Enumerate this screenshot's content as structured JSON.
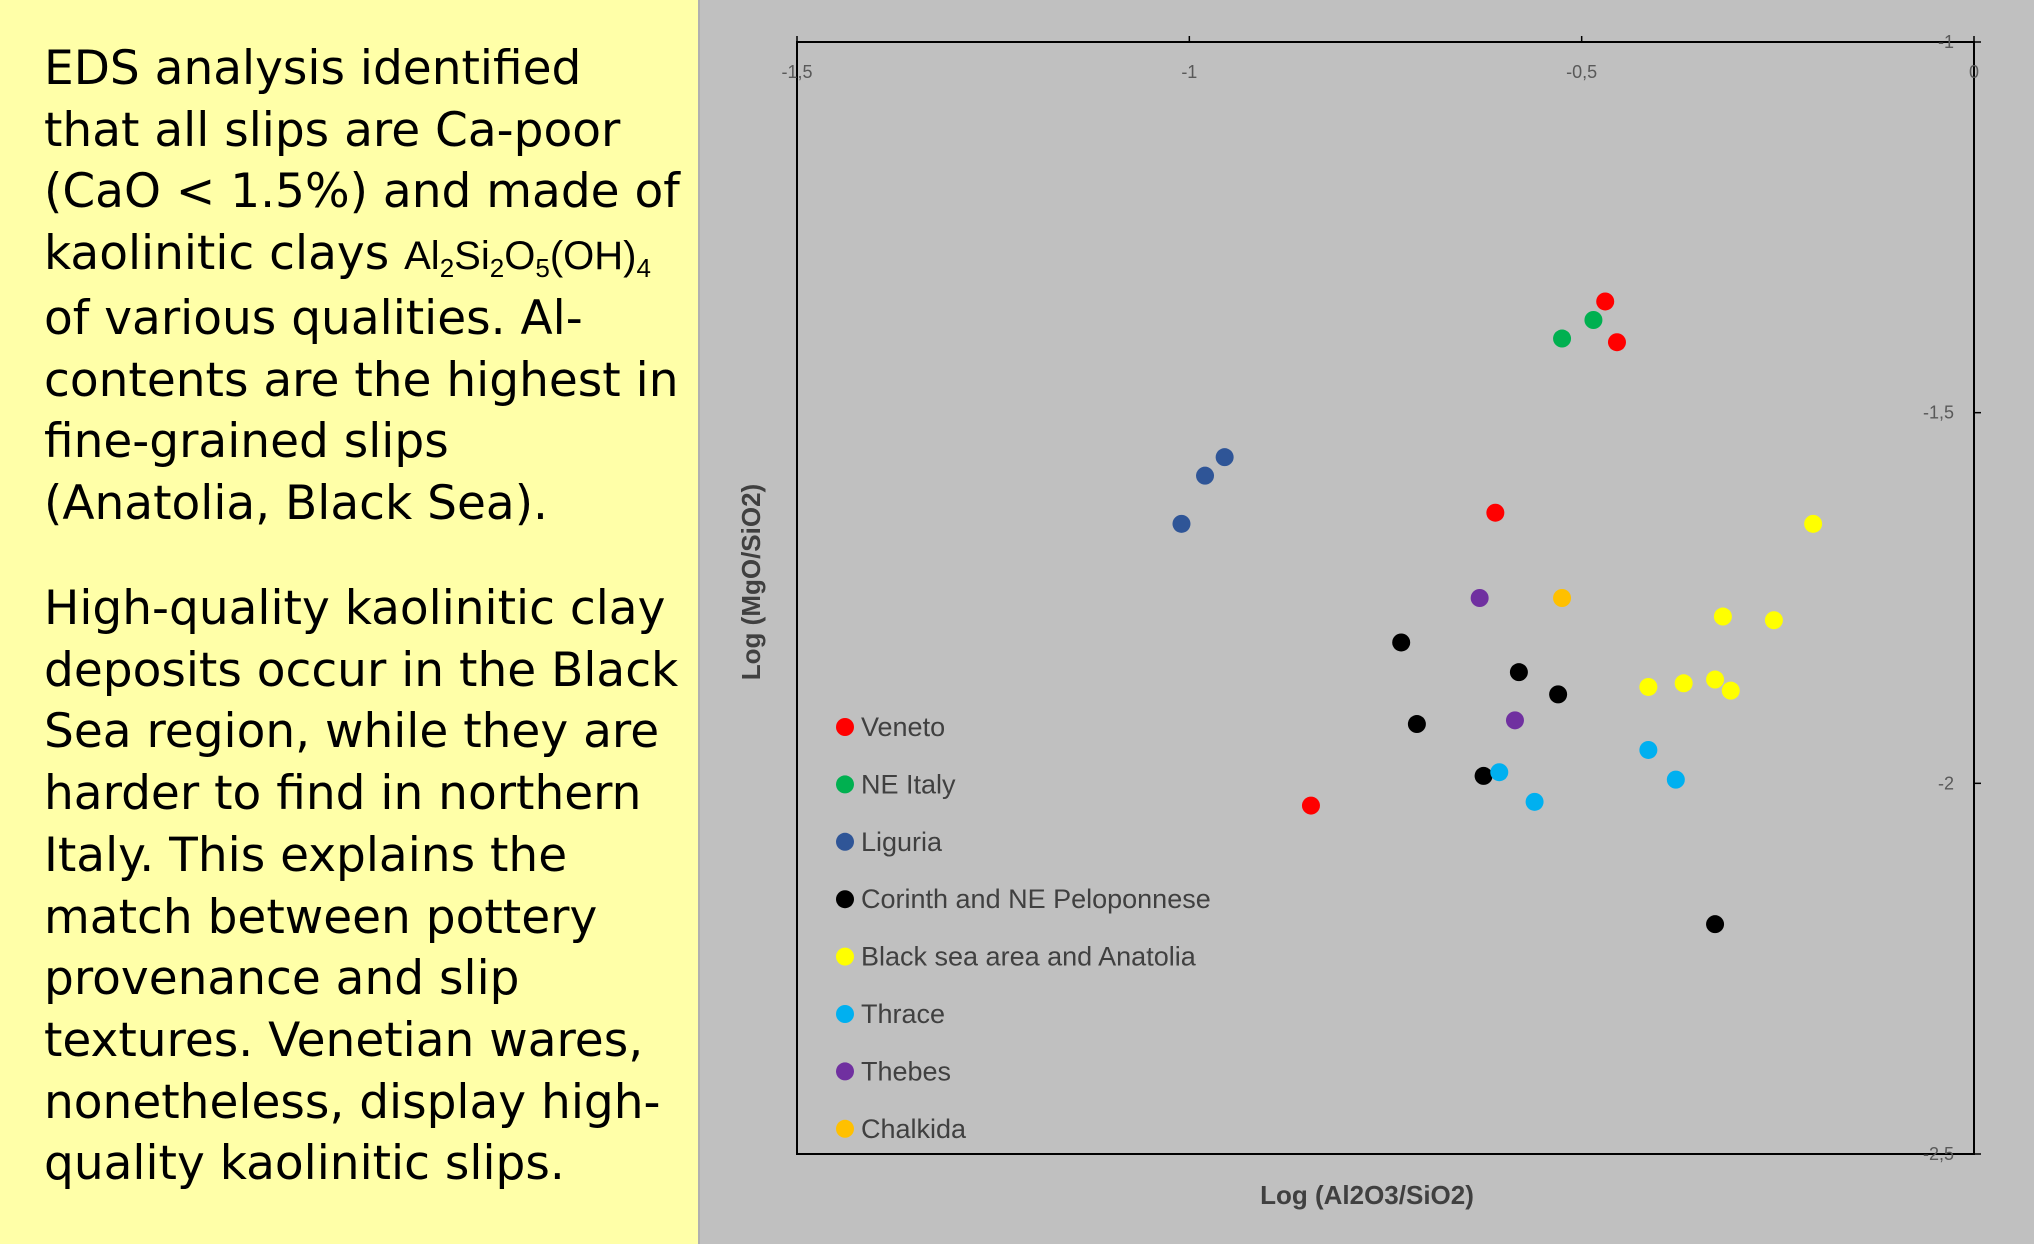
{
  "text_panel": {
    "para1": {
      "text_before": "EDS analysis identified that all slips are Ca-poor (CaO < 1.5%) and made of kaolinitic clays ",
      "formula": [
        "Al",
        "2",
        "Si",
        "2",
        "O",
        "5",
        "(OH)",
        "4"
      ],
      "text_after": " of various qualities. Al-contents are the highest in fine-grained slips (Anatolia, Black Sea)."
    },
    "para2": "High-quality kaolinitic clay deposits occur in the Black Sea region, while they are harder to find in northern Italy. This explains the match between pottery  provenance and slip textures. Venetian wares, nonetheless, display high-quality kaolinitic slips."
  },
  "chart_data": {
    "type": "scatter",
    "title": "",
    "xlabel": "Log (Al2O3/SiO2)",
    "ylabel": "Log (MgO/SiO2)",
    "xlim": [
      -1.5,
      0
    ],
    "ylim": [
      -2.5,
      -1
    ],
    "x_ticks": [
      -1.5,
      -1,
      -0.5,
      0
    ],
    "x_tick_labels": [
      "-1,5",
      "-1",
      "-0,5",
      "0"
    ],
    "y_ticks": [
      -1,
      -1.5,
      -2,
      -2.5
    ],
    "y_tick_labels": [
      "-1",
      "-1,5",
      "-2",
      "-2,5"
    ],
    "grid": false,
    "legend_position": "bottom-left",
    "series": [
      {
        "name": "Veneto",
        "color": "#ff0000",
        "points": [
          [
            -0.47,
            -1.35
          ],
          [
            -0.455,
            -1.405
          ],
          [
            -0.61,
            -1.635
          ],
          [
            -0.845,
            -2.03
          ]
        ]
      },
      {
        "name": "NE Italy",
        "color": "#00b050",
        "points": [
          [
            -0.485,
            -1.375
          ],
          [
            -0.525,
            -1.4
          ]
        ]
      },
      {
        "name": "Liguria",
        "color": "#2f5597",
        "points": [
          [
            -0.955,
            -1.56
          ],
          [
            -0.98,
            -1.585
          ],
          [
            -1.01,
            -1.65
          ]
        ]
      },
      {
        "name": "Corinth and NE Peloponnese",
        "color": "#000000",
        "points": [
          [
            -0.73,
            -1.81
          ],
          [
            -0.58,
            -1.85
          ],
          [
            -0.53,
            -1.88
          ],
          [
            -0.71,
            -1.92
          ],
          [
            -0.625,
            -1.99
          ],
          [
            -0.33,
            -2.19
          ]
        ]
      },
      {
        "name": "Black sea area and Anatolia",
        "color": "#ffff00",
        "points": [
          [
            -0.205,
            -1.65
          ],
          [
            -0.32,
            -1.775
          ],
          [
            -0.255,
            -1.78
          ],
          [
            -0.33,
            -1.86
          ],
          [
            -0.37,
            -1.865
          ],
          [
            -0.415,
            -1.87
          ],
          [
            -0.31,
            -1.875
          ]
        ]
      },
      {
        "name": "Thrace",
        "color": "#00b0f0",
        "points": [
          [
            -0.415,
            -1.955
          ],
          [
            -0.38,
            -1.995
          ],
          [
            -0.605,
            -1.985
          ],
          [
            -0.56,
            -2.025
          ]
        ]
      },
      {
        "name": "Thebes",
        "color": "#7030a0",
        "points": [
          [
            -0.63,
            -1.75
          ],
          [
            -0.585,
            -1.915
          ]
        ]
      },
      {
        "name": "Chalkida",
        "color": "#ffc000",
        "points": [
          [
            -0.525,
            -1.75
          ]
        ]
      }
    ]
  }
}
